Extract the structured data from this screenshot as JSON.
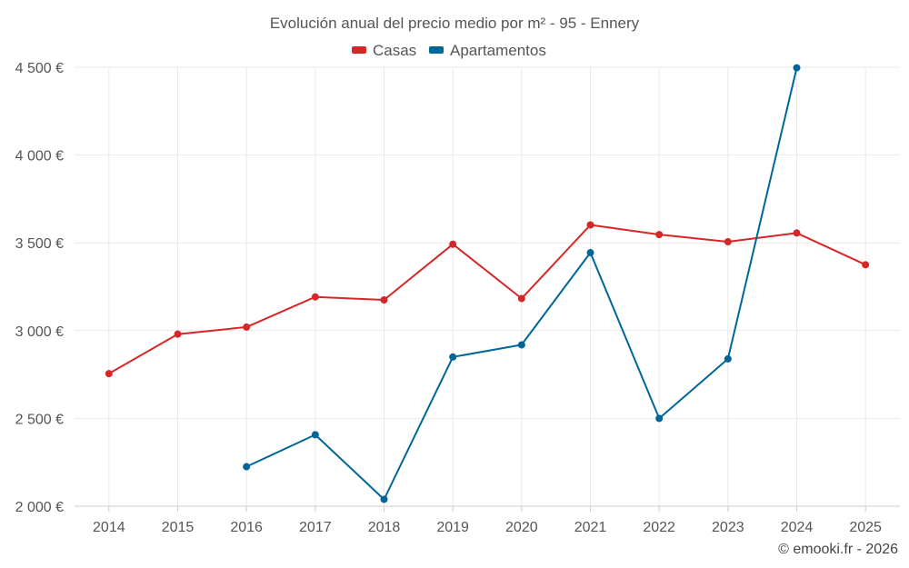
{
  "chart_data": {
    "type": "line",
    "title": "Evolución anual del precio medio por m² - 95 - Ennery",
    "categories": [
      "2014",
      "2015",
      "2016",
      "2017",
      "2018",
      "2019",
      "2020",
      "2021",
      "2022",
      "2023",
      "2024",
      "2025"
    ],
    "ylim": [
      2000,
      4500
    ],
    "yticks": [
      2000,
      2500,
      3000,
      3500,
      4000,
      4500
    ],
    "ytick_labels": [
      "2 000 €",
      "2 500 €",
      "3 000 €",
      "3 500 €",
      "4 000 €",
      "4 500 €"
    ],
    "series": [
      {
        "name": "Casas",
        "color": "#d62728",
        "values": [
          2755,
          2980,
          3020,
          3192,
          3175,
          3492,
          3183,
          3602,
          3547,
          3506,
          3556,
          3375
        ]
      },
      {
        "name": "Apartamentos",
        "color": "#006699",
        "values": [
          null,
          null,
          2225,
          2407,
          2039,
          2850,
          2919,
          3444,
          2500,
          2839,
          4497,
          null
        ]
      }
    ],
    "grid": true,
    "legend_position": "top-center",
    "credit": "© emooki.fr - 2026"
  }
}
